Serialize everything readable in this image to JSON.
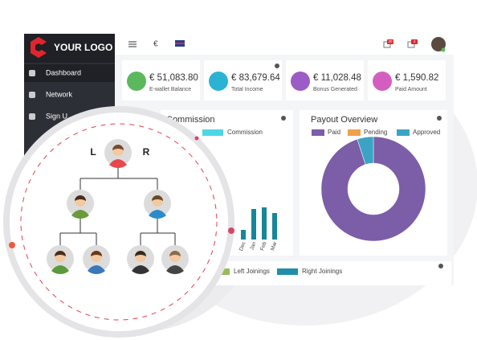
{
  "logo": "YOUR LOGO",
  "sidebar": [
    "Dashboard",
    "Network",
    "Sign U"
  ],
  "header": {
    "currency": "€",
    "badges": [
      "20",
      "4"
    ]
  },
  "cards": [
    {
      "amount": "€ 51,083.80",
      "label": "E-wallet Balance",
      "color": "#5cb85c"
    },
    {
      "amount": "€ 83,679.64",
      "label": "Total Income",
      "color": "#2bb3d4"
    },
    {
      "amount": "€ 11,028.48",
      "label": "Bonus Generated",
      "color": "#9b5cc6"
    },
    {
      "amount": "€ 1,590.82",
      "label": "Paid Amount",
      "color": "#d45ec0"
    }
  ],
  "chart_data": [
    {
      "type": "bar",
      "title": "Commission",
      "legend": "Commission",
      "legend_color": "#4dd6e8",
      "categories": [
        "Dec",
        "Jan",
        "Feb",
        "Mar"
      ],
      "values": [
        12,
        38,
        40,
        33
      ],
      "color": "#17869a"
    },
    {
      "type": "pie",
      "title": "Payout Overview",
      "categories": [
        "Paid",
        "Pending",
        "Approved"
      ],
      "values": [
        95,
        0,
        5
      ],
      "colors": [
        "#7b5ea7",
        "#f0a04b",
        "#3ba4c4"
      ]
    }
  ],
  "joinings": [
    {
      "name": "Left Joinings",
      "color": "#9bbb59"
    },
    {
      "name": "Right Joinings",
      "color": "#1f8fa8"
    }
  ],
  "tree": {
    "left": "L",
    "right": "R"
  }
}
